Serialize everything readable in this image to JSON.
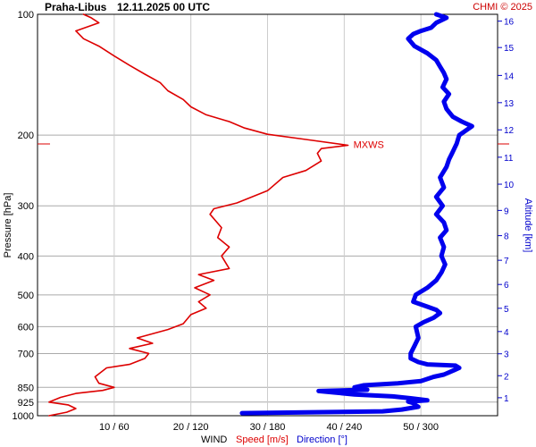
{
  "station": "Praha-Libus",
  "datetime": "12.11.2025 00 UTC",
  "copyright": "CHMI © 2025",
  "chart_data": {
    "type": "line",
    "ylabel": "Pressure [hPa]",
    "y2label": "Altitude [km]",
    "y_scale": "log",
    "ylim": [
      1000,
      100
    ],
    "pressure_ticks": [
      100,
      200,
      300,
      400,
      500,
      600,
      700,
      850,
      925,
      1000
    ],
    "altitude_ticks": [
      1,
      2,
      3,
      4,
      5,
      6,
      7,
      8,
      9,
      10,
      11,
      12,
      13,
      14,
      15,
      16
    ],
    "altitude_ticks_pressure": [
      902,
      795,
      701,
      617,
      540,
      471,
      410,
      356,
      308,
      265,
      227,
      194,
      166,
      142,
      121,
      104
    ],
    "xlabel": "WIND",
    "speed_label": "Speed [m/s]",
    "direction_label": "Direction [°]",
    "x_ticks": [
      {
        "speed": 10,
        "direction": 60,
        "label": "10 / 60"
      },
      {
        "speed": 20,
        "direction": 120,
        "label": "20 / 120"
      },
      {
        "speed": 30,
        "direction": 180,
        "label": "30 / 180"
      },
      {
        "speed": 40,
        "direction": 240,
        "label": "40 / 240"
      },
      {
        "speed": 50,
        "direction": 300,
        "label": "50 / 300"
      }
    ],
    "xlim_speed": [
      0,
      60
    ],
    "xlim_direction": [
      0,
      360
    ],
    "annotation": {
      "label": "MXWS",
      "pressure": 211,
      "speed": 40.5
    },
    "series": [
      {
        "name": "Speed [m/s]",
        "color": "#dd0000",
        "unit": "m/s",
        "points": [
          [
            1000,
            1.5
          ],
          [
            980,
            3.8
          ],
          [
            960,
            5
          ],
          [
            940,
            4
          ],
          [
            925,
            1.5
          ],
          [
            900,
            3
          ],
          [
            880,
            5
          ],
          [
            865,
            8.5
          ],
          [
            850,
            10
          ],
          [
            830,
            8
          ],
          [
            800,
            7.5
          ],
          [
            760,
            9
          ],
          [
            745,
            12
          ],
          [
            720,
            14
          ],
          [
            700,
            14.5
          ],
          [
            680,
            12
          ],
          [
            660,
            15
          ],
          [
            640,
            13
          ],
          [
            610,
            17
          ],
          [
            590,
            19
          ],
          [
            560,
            20
          ],
          [
            540,
            22
          ],
          [
            520,
            21
          ],
          [
            500,
            22.5
          ],
          [
            480,
            20.5
          ],
          [
            460,
            23
          ],
          [
            445,
            21
          ],
          [
            430,
            25
          ],
          [
            400,
            24
          ],
          [
            380,
            25
          ],
          [
            360,
            23.5
          ],
          [
            340,
            24
          ],
          [
            315,
            22.5
          ],
          [
            305,
            23
          ],
          [
            295,
            26
          ],
          [
            275,
            30
          ],
          [
            255,
            32
          ],
          [
            245,
            35
          ],
          [
            232,
            37
          ],
          [
            222,
            36.5
          ],
          [
            216,
            37
          ],
          [
            212,
            40.5
          ],
          [
            205,
            35
          ],
          [
            199,
            30
          ],
          [
            192,
            27
          ],
          [
            185,
            25
          ],
          [
            178,
            22
          ],
          [
            170,
            20
          ],
          [
            163,
            19
          ],
          [
            155,
            17
          ],
          [
            148,
            16
          ],
          [
            141,
            14
          ],
          [
            134,
            12
          ],
          [
            127,
            10
          ],
          [
            120,
            8
          ],
          [
            115,
            6
          ],
          [
            110,
            5
          ],
          [
            105,
            8
          ],
          [
            102,
            7
          ],
          [
            100,
            6
          ]
        ]
      },
      {
        "name": "Direction [°]",
        "color": "#0000ee",
        "unit": "deg",
        "points": [
          [
            985,
            160
          ],
          [
            975,
            270
          ],
          [
            965,
            285
          ],
          [
            950,
            298
          ],
          [
            938,
            295
          ],
          [
            930,
            294
          ],
          [
            922,
            290
          ],
          [
            915,
            305
          ],
          [
            905,
            292
          ],
          [
            895,
            278
          ],
          [
            885,
            248
          ],
          [
            875,
            232
          ],
          [
            868,
            220
          ],
          [
            862,
            258
          ],
          [
            850,
            248
          ],
          [
            840,
            255
          ],
          [
            830,
            282
          ],
          [
            820,
            300
          ],
          [
            800,
            310
          ],
          [
            790,
            318
          ],
          [
            780,
            322
          ],
          [
            760,
            330
          ],
          [
            750,
            327
          ],
          [
            745,
            305
          ],
          [
            735,
            298
          ],
          [
            720,
            292
          ],
          [
            700,
            292
          ],
          [
            670,
            295
          ],
          [
            640,
            298
          ],
          [
            620,
            297
          ],
          [
            600,
            296
          ],
          [
            585,
            302
          ],
          [
            570,
            310
          ],
          [
            555,
            315
          ],
          [
            545,
            312
          ],
          [
            535,
            305
          ],
          [
            520,
            294
          ],
          [
            500,
            296
          ],
          [
            480,
            305
          ],
          [
            460,
            312
          ],
          [
            440,
            316
          ],
          [
            420,
            319
          ],
          [
            400,
            316
          ],
          [
            380,
            318
          ],
          [
            360,
            315
          ],
          [
            345,
            320
          ],
          [
            330,
            318
          ],
          [
            315,
            312
          ],
          [
            300,
            317
          ],
          [
            285,
            312
          ],
          [
            270,
            318
          ],
          [
            255,
            315
          ],
          [
            240,
            320
          ],
          [
            230,
            322
          ],
          [
            220,
            325
          ],
          [
            210,
            328
          ],
          [
            200,
            330
          ],
          [
            195,
            335
          ],
          [
            190,
            340
          ],
          [
            185,
            332
          ],
          [
            180,
            325
          ],
          [
            172,
            320
          ],
          [
            165,
            318
          ],
          [
            158,
            322
          ],
          [
            152,
            317
          ],
          [
            145,
            320
          ],
          [
            140,
            318
          ],
          [
            135,
            315
          ],
          [
            130,
            312
          ],
          [
            125,
            305
          ],
          [
            120,
            295
          ],
          [
            115,
            290
          ],
          [
            112,
            294
          ],
          [
            110,
            300
          ],
          [
            108,
            308
          ],
          [
            105,
            312
          ],
          [
            102,
            320
          ],
          [
            100,
            312
          ]
        ]
      }
    ]
  }
}
